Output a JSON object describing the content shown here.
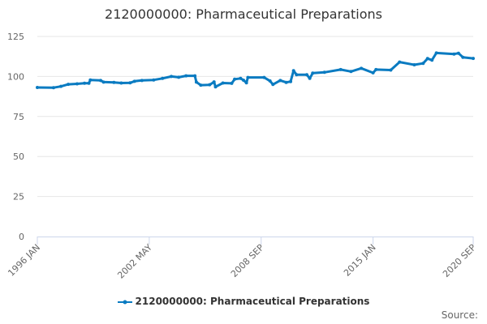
{
  "chart_data": {
    "type": "line",
    "title": "2120000000: Pharmaceutical Preparations",
    "xlabel": "",
    "ylabel": "",
    "ylim": [
      0,
      125
    ],
    "xlim": [
      "1996-01",
      "2020-09"
    ],
    "yticks": [
      "0",
      "25",
      "50",
      "75",
      "100",
      "125"
    ],
    "xticks": [
      {
        "label": "1996 JAN",
        "date": "1996-01"
      },
      {
        "label": "2002 MAY",
        "date": "2002-05"
      },
      {
        "label": "2008 SEP",
        "date": "2008-09"
      },
      {
        "label": "2015 JAN",
        "date": "2015-01"
      },
      {
        "label": "2020 SEP",
        "date": "2020-09"
      }
    ],
    "grid": true,
    "legend_position": "bottom",
    "series": [
      {
        "name": "2120000000: Pharmaceutical Preparations",
        "color": "#0a7bc1",
        "points": [
          [
            "1996-01",
            93.1
          ],
          [
            "1996-12",
            93.0
          ],
          [
            "1997-05",
            93.8
          ],
          [
            "1997-10",
            95.1
          ],
          [
            "1998-04",
            95.4
          ],
          [
            "1998-09",
            95.8
          ],
          [
            "1998-12",
            95.8
          ],
          [
            "1999-01",
            97.8
          ],
          [
            "1999-08",
            97.5
          ],
          [
            "1999-10",
            96.5
          ],
          [
            "2000-05",
            96.3
          ],
          [
            "2000-10",
            95.9
          ],
          [
            "2001-04",
            96.0
          ],
          [
            "2001-07",
            97.0
          ],
          [
            "2001-12",
            97.5
          ],
          [
            "2002-08",
            97.8
          ],
          [
            "2003-02",
            98.8
          ],
          [
            "2003-08",
            100.0
          ],
          [
            "2004-01",
            99.5
          ],
          [
            "2004-06",
            100.4
          ],
          [
            "2004-12",
            100.4
          ],
          [
            "2005-01",
            96.5
          ],
          [
            "2005-04",
            94.6
          ],
          [
            "2005-10",
            94.8
          ],
          [
            "2006-01",
            96.6
          ],
          [
            "2006-02",
            93.5
          ],
          [
            "2006-07",
            95.9
          ],
          [
            "2007-01",
            95.7
          ],
          [
            "2007-03",
            98.3
          ],
          [
            "2007-07",
            98.8
          ],
          [
            "2007-09",
            97.7
          ],
          [
            "2007-11",
            96.0
          ],
          [
            "2007-12",
            99.4
          ],
          [
            "2008-11",
            99.4
          ],
          [
            "2009-03",
            97.2
          ],
          [
            "2009-05",
            95.0
          ],
          [
            "2009-10",
            97.5
          ],
          [
            "2010-02",
            96.3
          ],
          [
            "2010-05",
            96.8
          ],
          [
            "2010-07",
            103.6
          ],
          [
            "2010-09",
            101.1
          ],
          [
            "2011-04",
            101.1
          ],
          [
            "2011-06",
            98.8
          ],
          [
            "2011-08",
            102.1
          ],
          [
            "2012-04",
            102.6
          ],
          [
            "2013-03",
            104.3
          ],
          [
            "2013-10",
            103.1
          ],
          [
            "2014-05",
            105.1
          ],
          [
            "2015-01",
            102.3
          ],
          [
            "2015-03",
            104.3
          ],
          [
            "2016-01",
            104.0
          ],
          [
            "2016-07",
            109.0
          ],
          [
            "2017-05",
            107.3
          ],
          [
            "2017-11",
            108.2
          ],
          [
            "2018-02",
            111.2
          ],
          [
            "2018-05",
            110.2
          ],
          [
            "2018-08",
            114.7
          ],
          [
            "2019-08",
            114.0
          ],
          [
            "2019-11",
            114.5
          ],
          [
            "2020-02",
            112.0
          ],
          [
            "2020-09",
            111.3
          ]
        ]
      }
    ]
  },
  "footer": {
    "source": "Source:"
  }
}
